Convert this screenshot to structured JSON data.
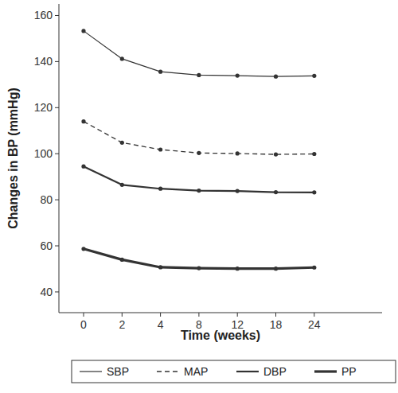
{
  "chart_data": {
    "type": "line",
    "x_label": "Time (weeks)",
    "y_label": "Changes in BP (mmHg)",
    "categories": [
      "0",
      "2",
      "4",
      "8",
      "12",
      "18",
      "24"
    ],
    "ylim": [
      31,
      165
    ],
    "yticks": [
      40,
      60,
      80,
      100,
      120,
      140,
      160
    ],
    "grid": false,
    "legend": "bottom",
    "marker": "circle",
    "series": [
      {
        "name": "SBP",
        "color": "#333333",
        "line_style": "thin",
        "values": [
          153.3,
          141.2,
          135.6,
          134.1,
          133.9,
          133.5,
          133.8
        ]
      },
      {
        "name": "MAP",
        "color": "#333333",
        "line_style": "dashed",
        "values": [
          114.0,
          104.8,
          101.8,
          100.3,
          100.1,
          99.7,
          99.9
        ]
      },
      {
        "name": "DBP",
        "color": "#333333",
        "line_style": "medium",
        "values": [
          94.5,
          86.5,
          84.8,
          84.0,
          83.8,
          83.3,
          83.2
        ]
      },
      {
        "name": "PP",
        "color": "#333333",
        "line_style": "thick",
        "values": [
          58.7,
          54.0,
          50.7,
          50.3,
          50.1,
          50.1,
          50.6
        ]
      }
    ]
  }
}
